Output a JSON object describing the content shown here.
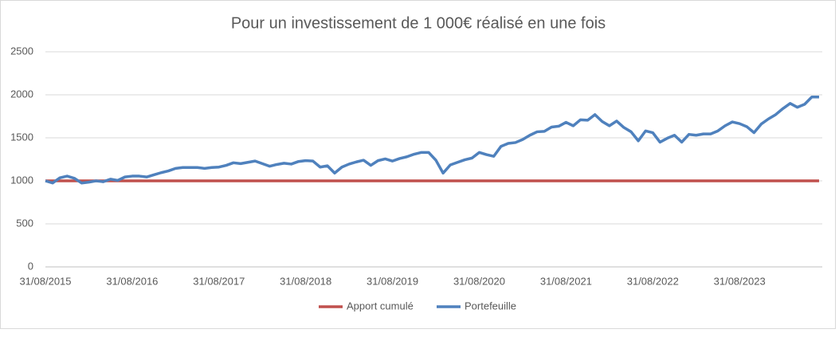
{
  "chart_data": {
    "type": "line",
    "title": "Pour un investissement de 1 000€ réalisé en une fois",
    "categories": [
      "31/08/2015",
      null,
      null,
      null,
      null,
      null,
      null,
      null,
      null,
      null,
      null,
      null,
      "31/08/2016",
      null,
      null,
      null,
      null,
      null,
      null,
      null,
      null,
      null,
      null,
      null,
      "31/08/2017",
      null,
      null,
      null,
      null,
      null,
      null,
      null,
      null,
      null,
      null,
      null,
      "31/08/2018",
      null,
      null,
      null,
      null,
      null,
      null,
      null,
      null,
      null,
      null,
      null,
      "31/08/2019",
      null,
      null,
      null,
      null,
      null,
      null,
      null,
      null,
      null,
      null,
      null,
      "31/08/2020",
      null,
      null,
      null,
      null,
      null,
      null,
      null,
      null,
      null,
      null,
      null,
      "31/08/2021",
      null,
      null,
      null,
      null,
      null,
      null,
      null,
      null,
      null,
      null,
      null,
      "31/08/2022",
      null,
      null,
      null,
      null,
      null,
      null,
      null,
      null,
      null,
      null,
      null,
      "31/08/2023",
      null,
      null,
      null,
      null,
      null,
      null,
      null,
      null,
      null,
      null,
      null
    ],
    "series": [
      {
        "name": "Apport cumulé",
        "color": "#c0504d",
        "values": [
          1000,
          1000,
          1000,
          1000,
          1000,
          1000,
          1000,
          1000,
          1000,
          1000,
          1000,
          1000,
          1000,
          1000,
          1000,
          1000,
          1000,
          1000,
          1000,
          1000,
          1000,
          1000,
          1000,
          1000,
          1000,
          1000,
          1000,
          1000,
          1000,
          1000,
          1000,
          1000,
          1000,
          1000,
          1000,
          1000,
          1000,
          1000,
          1000,
          1000,
          1000,
          1000,
          1000,
          1000,
          1000,
          1000,
          1000,
          1000,
          1000,
          1000,
          1000,
          1000,
          1000,
          1000,
          1000,
          1000,
          1000,
          1000,
          1000,
          1000,
          1000,
          1000,
          1000,
          1000,
          1000,
          1000,
          1000,
          1000,
          1000,
          1000,
          1000,
          1000,
          1000,
          1000,
          1000,
          1000,
          1000,
          1000,
          1000,
          1000,
          1000,
          1000,
          1000,
          1000,
          1000,
          1000,
          1000,
          1000,
          1000,
          1000,
          1000,
          1000,
          1000,
          1000,
          1000,
          1000,
          1000,
          1000,
          1000,
          1000,
          1000,
          1000,
          1000,
          1000,
          1000,
          1000,
          1000,
          1000
        ]
      },
      {
        "name": "Portefeuille",
        "color": "#4f81bd",
        "values": [
          1000,
          975,
          1035,
          1055,
          1030,
          975,
          985,
          1000,
          990,
          1020,
          1005,
          1045,
          1055,
          1055,
          1045,
          1070,
          1095,
          1115,
          1145,
          1155,
          1155,
          1155,
          1145,
          1155,
          1160,
          1180,
          1210,
          1200,
          1215,
          1230,
          1200,
          1170,
          1190,
          1205,
          1195,
          1225,
          1235,
          1230,
          1160,
          1175,
          1090,
          1160,
          1195,
          1220,
          1240,
          1180,
          1235,
          1255,
          1230,
          1260,
          1280,
          1310,
          1330,
          1330,
          1240,
          1090,
          1185,
          1215,
          1245,
          1265,
          1330,
          1305,
          1285,
          1400,
          1435,
          1445,
          1480,
          1530,
          1570,
          1575,
          1625,
          1635,
          1680,
          1640,
          1710,
          1705,
          1770,
          1690,
          1640,
          1695,
          1620,
          1570,
          1465,
          1580,
          1560,
          1450,
          1495,
          1530,
          1450,
          1540,
          1530,
          1545,
          1545,
          1580,
          1640,
          1685,
          1665,
          1630,
          1560,
          1660,
          1720,
          1770,
          1840,
          1900,
          1855,
          1890,
          1975,
          1975
        ]
      }
    ],
    "ylim": [
      0,
      2500
    ],
    "yticks": [
      0,
      500,
      1000,
      1500,
      2000,
      2500
    ],
    "grid": true,
    "legend": "bottom"
  }
}
